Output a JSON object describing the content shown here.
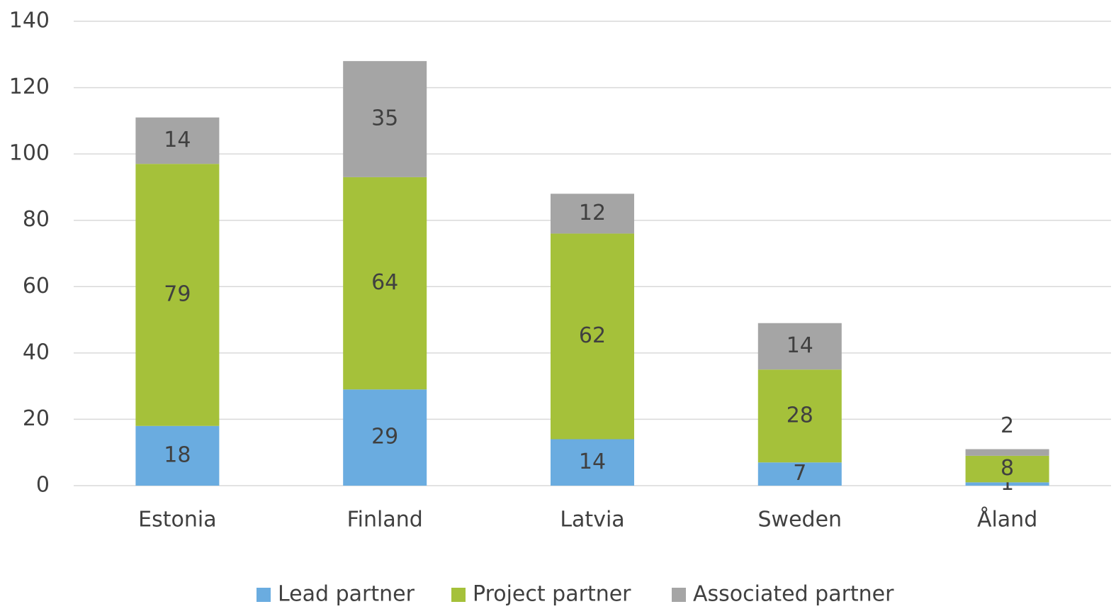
{
  "chart_data": {
    "type": "stacked_bar",
    "categories": [
      "Estonia",
      "Finland",
      "Latvia",
      "Sweden",
      "Åland"
    ],
    "series": [
      {
        "name": "Lead partner",
        "color": "#6aace0",
        "values": [
          18,
          29,
          14,
          7,
          1
        ]
      },
      {
        "name": "Project partner",
        "color": "#a5c13a",
        "values": [
          79,
          64,
          62,
          28,
          8
        ]
      },
      {
        "name": "Associated partner",
        "color": "#a5a5a5",
        "values": [
          14,
          35,
          12,
          14,
          2
        ]
      }
    ],
    "ylim": [
      0,
      140
    ],
    "yticks": [
      0,
      20,
      40,
      60,
      80,
      100,
      120,
      140
    ],
    "grid": true,
    "legend": "bottom"
  }
}
